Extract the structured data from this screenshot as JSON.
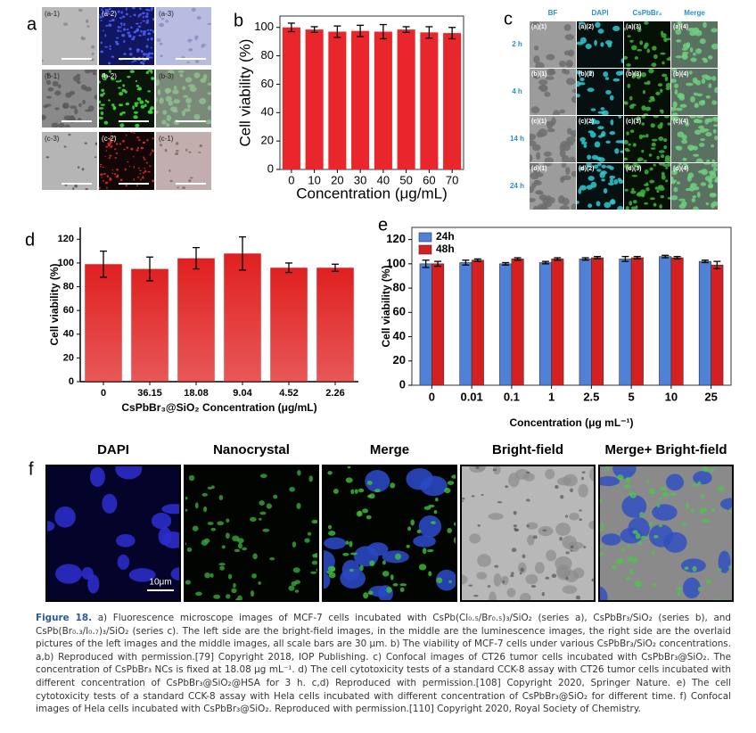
{
  "panels": {
    "a": {
      "letter": "a",
      "labels": [
        [
          "(a-1)",
          "(a-2)",
          "(a-3)"
        ],
        [
          "(b-1)",
          "(b-2)",
          "(b-3)"
        ],
        [
          "(c-3)",
          "(c-2)",
          "(c-1)"
        ]
      ]
    },
    "c": {
      "letter": "c",
      "columns": [
        "BF",
        "DAPI",
        "CsPbBr₃",
        "Merge"
      ],
      "rows": [
        "2 h",
        "4 h",
        "14 h",
        "24 h"
      ],
      "labels": [
        [
          "(a)(1)",
          "(a)(2)",
          "(a)(3)",
          "(a)(4)"
        ],
        [
          "(b)(1)",
          "(b)(2)",
          "(b)(3)",
          "(b)(4)"
        ],
        [
          "(c)(1)",
          "(c)(2)",
          "(c)(3)",
          "(c)(4)"
        ],
        [
          "(d)(1)",
          "(d)(2)",
          "(d)(3)",
          "(d)(4)"
        ]
      ]
    },
    "f": {
      "letter": "f",
      "columns": [
        "DAPI",
        "Nanocrystal",
        "Merge",
        "Bright-field",
        "Merge+ Bright-field"
      ],
      "scale_bar": "10μm"
    }
  },
  "chart_data": [
    {
      "type": "bar",
      "letter": "b",
      "xlabel": "Concentration (μg/mL)",
      "ylabel": "Cell viability (%)",
      "categories": [
        "0",
        "10",
        "20",
        "30",
        "40",
        "50",
        "60",
        "70"
      ],
      "values": [
        100,
        98.5,
        97,
        97.5,
        97,
        98.5,
        96.5,
        96
      ],
      "errors": [
        3,
        2,
        4,
        4,
        5,
        2,
        4,
        4
      ],
      "color": "#e8262b",
      "ylim": [
        0,
        108
      ],
      "yticks": [
        0,
        20,
        40,
        60,
        80,
        100
      ]
    },
    {
      "type": "bar",
      "letter": "d",
      "xlabel": "CsPbBr₃@SiO₂ Concentration (μg/mL)",
      "ylabel": "Cell viability (%)",
      "categories": [
        "0",
        "36.15",
        "18.08",
        "9.04",
        "4.52",
        "2.26"
      ],
      "values": [
        99,
        95,
        104,
        108,
        96,
        96
      ],
      "errors": [
        11,
        10,
        9,
        14,
        4,
        3
      ],
      "color": "#e02020",
      "ylim": [
        0,
        130
      ],
      "yticks": [
        0,
        20,
        40,
        60,
        80,
        100,
        120
      ]
    },
    {
      "type": "bar",
      "letter": "e",
      "xlabel": "Concentration (μg mL⁻¹)",
      "ylabel": "Cell viability (%)",
      "categories": [
        "0",
        "0.01",
        "0.1",
        "1",
        "2.5",
        "5",
        "10",
        "25"
      ],
      "series": [
        {
          "name": "24h",
          "color": "#4f81d6",
          "values": [
            100,
            101,
            100,
            101,
            104,
            104,
            106,
            102
          ],
          "errors": [
            3,
            2,
            1,
            1,
            1,
            2,
            1,
            1
          ]
        },
        {
          "name": "48h",
          "color": "#d42020",
          "values": [
            100,
            103,
            104,
            104,
            105,
            105,
            105,
            99
          ],
          "errors": [
            2,
            1,
            1,
            1,
            1,
            1,
            1,
            3
          ]
        }
      ],
      "legend": "upper left",
      "ylim": [
        0,
        130
      ],
      "yticks": [
        0,
        20,
        40,
        60,
        80,
        100,
        120
      ]
    }
  ],
  "caption": {
    "label": "Figure 18.",
    "text": "a) Fluorescence microscope images of MCF-7 cells incubated with CsPb(Cl₀.₅/Br₀.₅)₃/SiO₂ (series a), CsPbBr₃/SiO₂ (series b), and CsPb(Br₀.₃/I₀.₇)₃/SiO₂ (series c). The left side are the bright-field images, in the middle are the luminescence images, the right side are the overlaid pictures of the left images and the middle images, all scale bars are 30 µm. b) The viability of MCF-7 cells under various CsPbBr₃/SiO₂ concentrations. a,b) Reproduced with permission.[79] Copyright 2018, IOP Publishing. c) Confocal images of CT26 tumor cells incubated with CsPbBr₃@SiO₂. The concentration of CsPbBr₃ NCs is fixed at 18.08 µg mL⁻¹. d) The cell cytotoxicity tests of a standard CCK-8 assay with CT26 tumor cells incubated with different concentration of CsPbBr₃@SiO₂@HSA for 3 h. c,d) Reproduced with permission.[108] Copyright 2020, Springer Nature. e) The cell cytotoxicity tests of a standard CCK-8 assay with Hela cells incubated with different concentration of CsPbBr₃@SiO₂ for different time. f) Confocal images of Hela cells incubated with CsPbBr₃@SiO₂. Reproduced with permission.[110] Copyright 2020, Royal Society of Chemistry."
  }
}
